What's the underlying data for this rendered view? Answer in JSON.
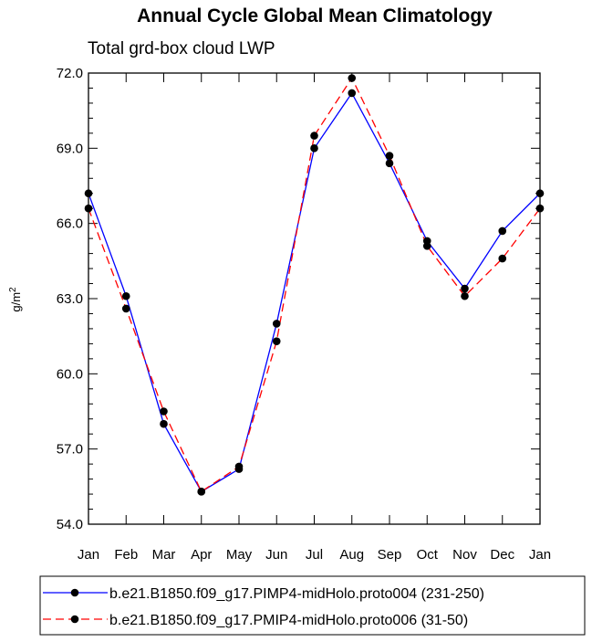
{
  "chart_data": {
    "type": "line",
    "title": "Annual Cycle Global Mean Climatology",
    "subtitle": "Total grd-box cloud LWP",
    "ylabel": "g/m",
    "ylabel_superscript": "2",
    "xlabel": "",
    "categories": [
      "Jan",
      "Feb",
      "Mar",
      "Apr",
      "May",
      "Jun",
      "Jul",
      "Aug",
      "Sep",
      "Oct",
      "Nov",
      "Dec",
      "Jan"
    ],
    "yticks": [
      "54.0",
      "57.0",
      "60.0",
      "63.0",
      "66.0",
      "69.0",
      "72.0"
    ],
    "ylim": [
      54.0,
      72.0
    ],
    "grid": false,
    "legend_position": "bottom",
    "series": [
      {
        "name": "b.e21.B1850.f09_g17.PIMP4-midHolo.proto004 (231-250)",
        "color": "#0000ff",
        "line_style": "solid",
        "marker": "filled-circle",
        "values": [
          67.2,
          63.1,
          58.0,
          55.3,
          56.2,
          62.0,
          69.0,
          71.2,
          68.4,
          65.3,
          63.4,
          65.7,
          67.2
        ]
      },
      {
        "name": "b.e21.B1850.f09_g17.PMIP4-midHolo.proto006 (31-50)",
        "color": "#ff0000",
        "line_style": "dashed",
        "marker": "filled-circle",
        "values": [
          66.6,
          62.6,
          58.5,
          55.3,
          56.3,
          61.3,
          69.5,
          71.8,
          68.7,
          65.1,
          63.1,
          64.6,
          66.6
        ]
      }
    ]
  }
}
